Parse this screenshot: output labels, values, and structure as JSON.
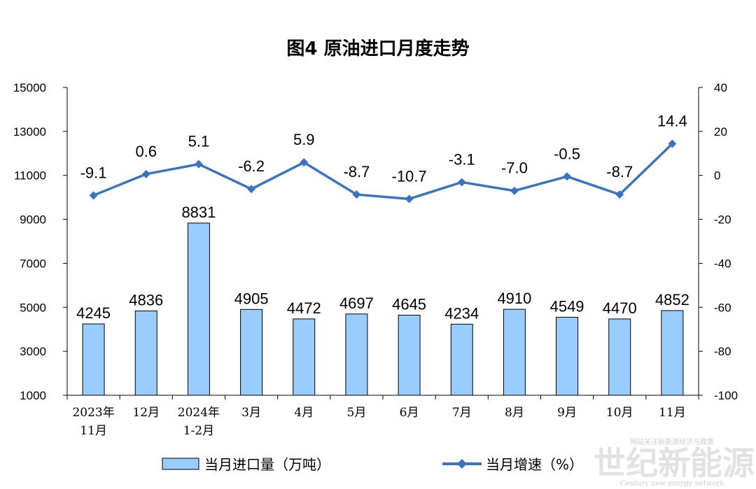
{
  "chart_data": {
    "type": "bar+line",
    "title": "图4  原油进口月度走势",
    "categories": [
      [
        "2023年",
        "11月"
      ],
      [
        "12月"
      ],
      [
        "2024年",
        "1-2月"
      ],
      [
        "3月"
      ],
      [
        "4月"
      ],
      [
        "5月"
      ],
      [
        "6月"
      ],
      [
        "7月"
      ],
      [
        "8月"
      ],
      [
        "9月"
      ],
      [
        "10月"
      ],
      [
        "11月"
      ]
    ],
    "bar_series": {
      "name": "当月进口量（万吨）",
      "values": [
        4245,
        4836,
        8831,
        4905,
        4472,
        4697,
        4645,
        4234,
        4910,
        4549,
        4470,
        4852
      ],
      "color": "#99ccff",
      "stroke": "#000000"
    },
    "line_series": {
      "name": "当月增速（%）",
      "values": [
        -9.1,
        0.6,
        5.1,
        -6.2,
        5.9,
        -8.7,
        -10.7,
        -3.1,
        -7.0,
        -0.5,
        -8.7,
        14.4
      ],
      "labels": [
        "-9.1",
        "0.6",
        "5.1",
        "-6.2",
        "5.9",
        "-8.7",
        "-10.7",
        "-3.1",
        "-7.0",
        "-0.5",
        "-8.7",
        "14.4"
      ],
      "color": "#3a74c0"
    },
    "y_left": {
      "min": 1000,
      "max": 15000,
      "ticks": [
        1000,
        3000,
        5000,
        7000,
        9000,
        11000,
        13000,
        15000
      ]
    },
    "y_right": {
      "min": -100,
      "max": 40,
      "ticks": [
        -100,
        -80,
        -60,
        -40,
        -20,
        0,
        20,
        40
      ]
    },
    "grid": false,
    "legend_position": "bottom"
  },
  "watermark": {
    "brand": "世纪新能源网",
    "tagline": "网站关注新能源经济与政策",
    "english": "Century new energy network"
  }
}
